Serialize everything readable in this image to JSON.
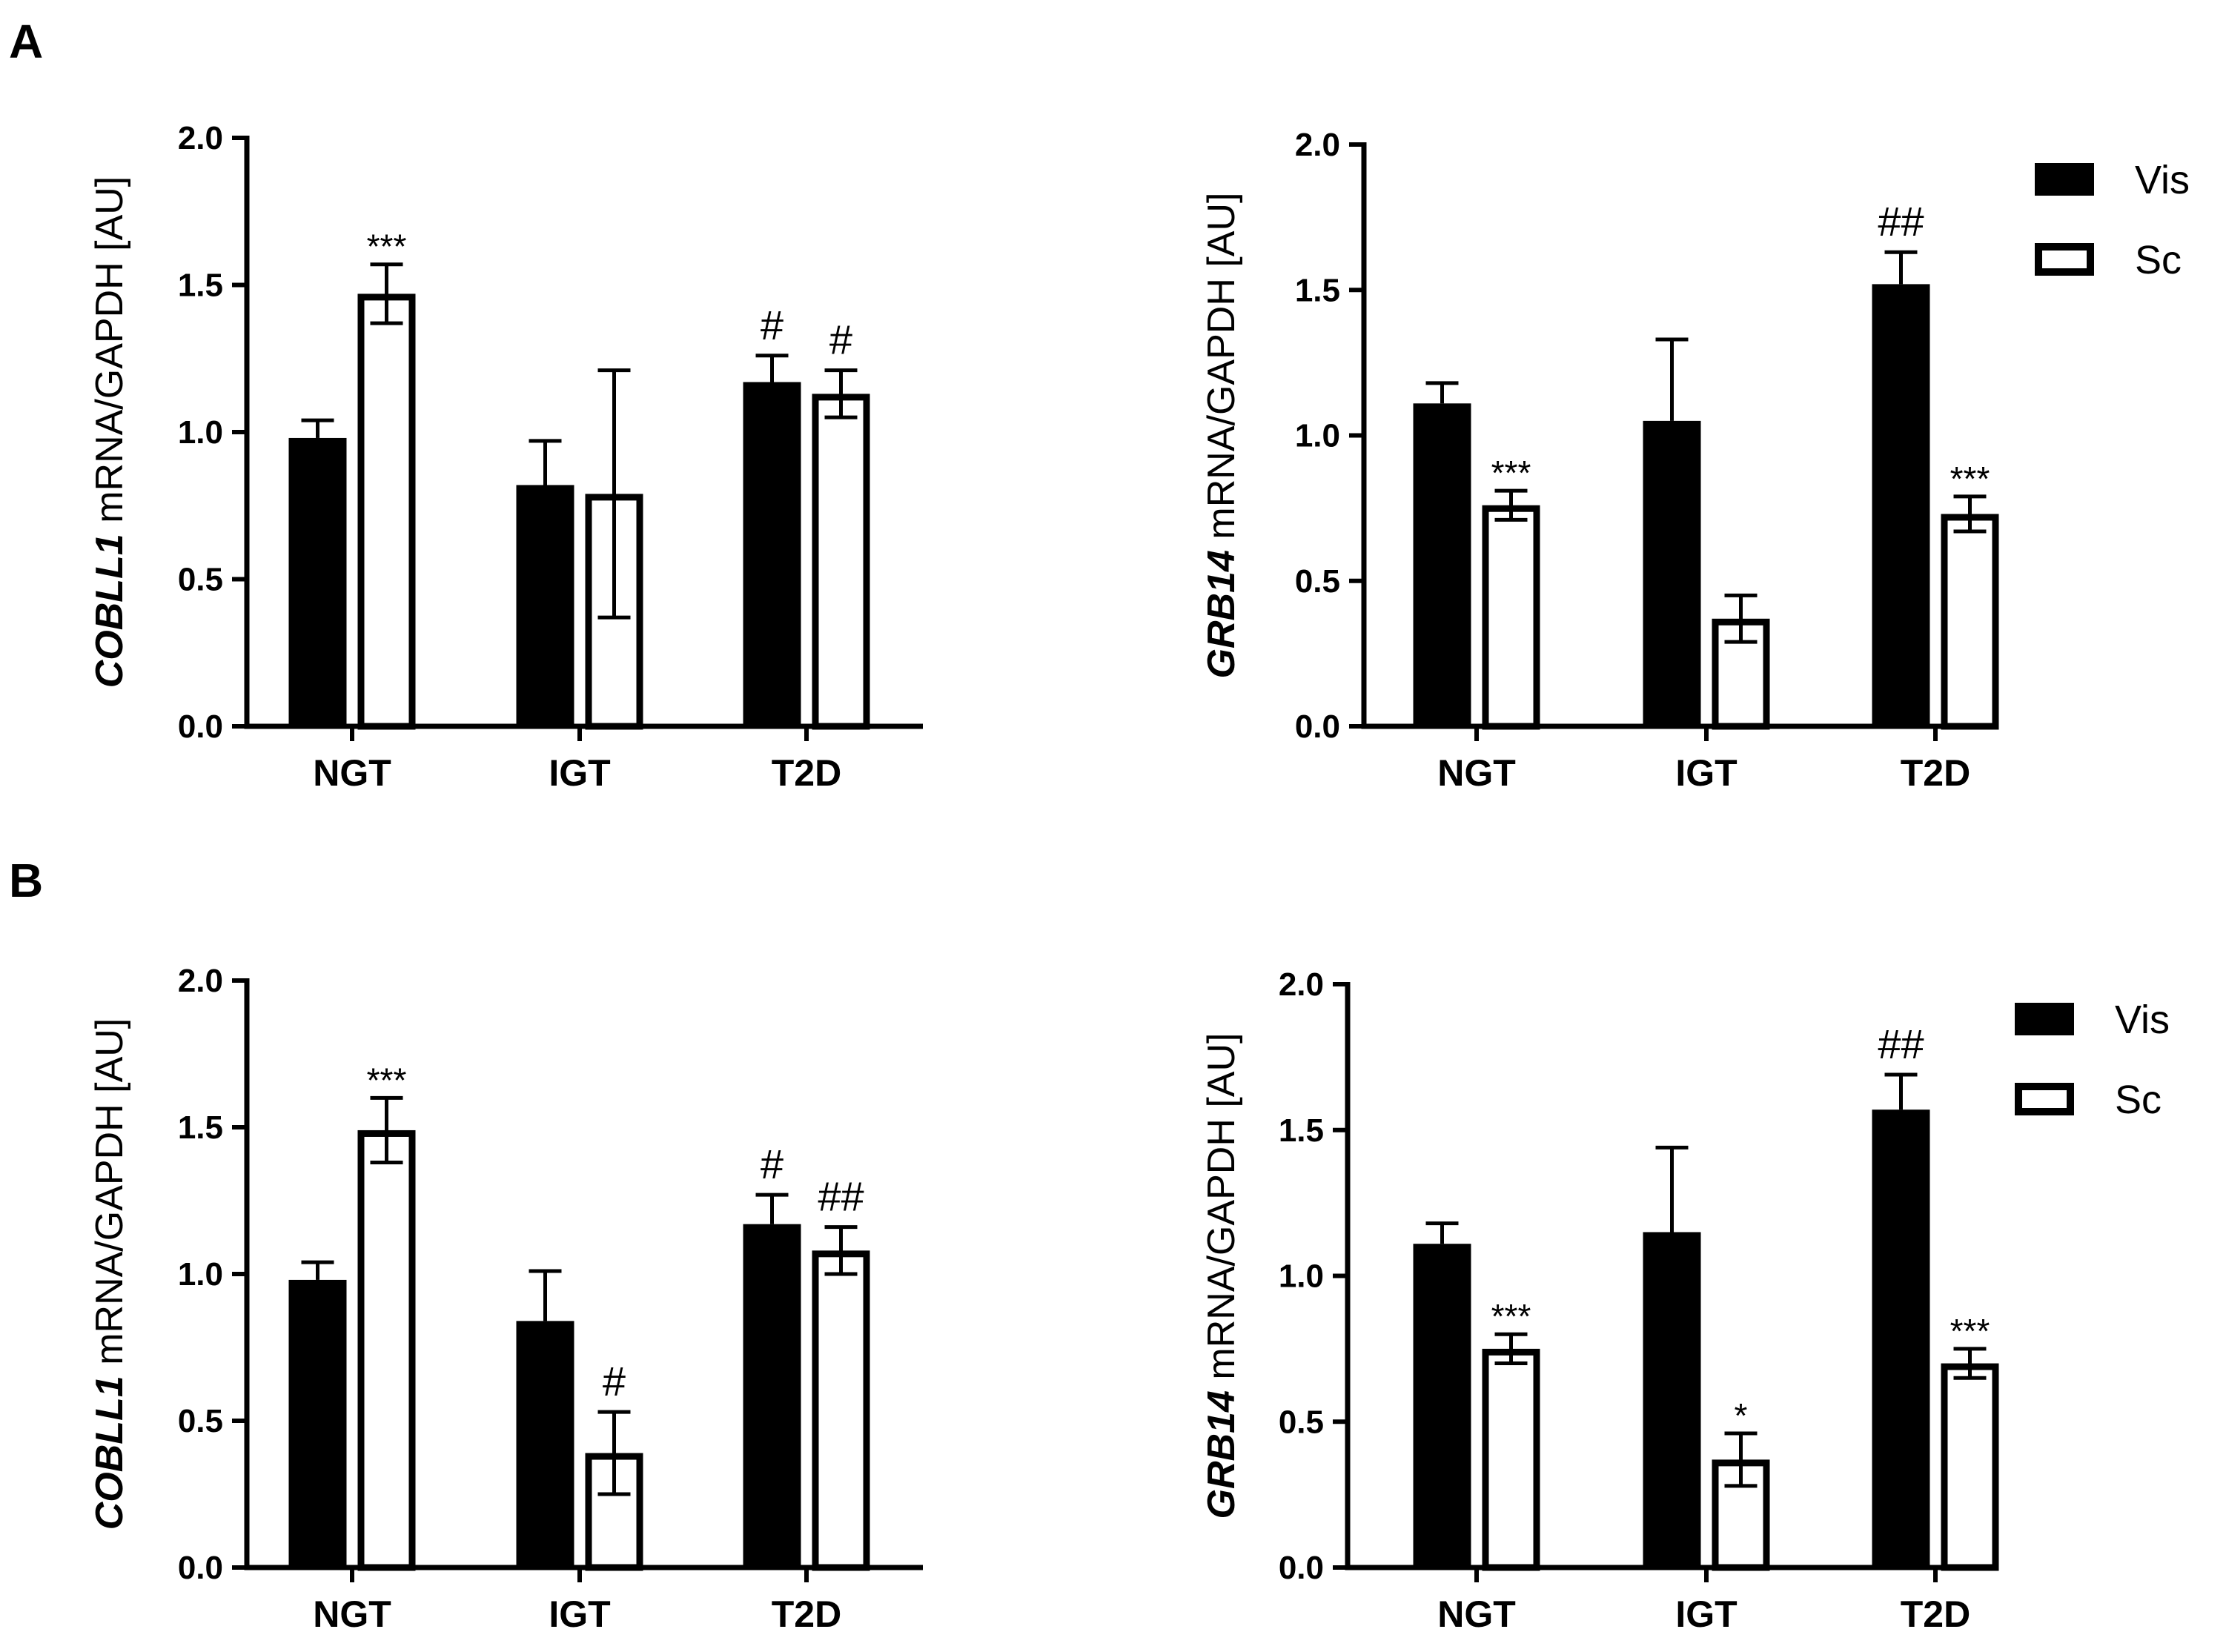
{
  "figure": {
    "panel_labels": [
      "A",
      "B"
    ],
    "legend": [
      {
        "label": "Vis",
        "fill": "#000000"
      },
      {
        "label": "Sc",
        "fill": "#ffffff"
      }
    ]
  },
  "chart_data": [
    {
      "type": "bar",
      "panel": "A",
      "position": "top-left",
      "ylabel_gene": "COBLL1",
      "ylabel_rest": " mRNA/GAPDH  [AU]",
      "ylim": [
        0,
        2.0
      ],
      "yticks": [
        "0.0",
        "0.5",
        "1.0",
        "1.5",
        "2.0"
      ],
      "categories": [
        "NGT",
        "IGT",
        "T2D"
      ],
      "series": [
        {
          "name": "Vis",
          "values": [
            0.98,
            0.82,
            1.17
          ],
          "errors": [
            0.06,
            0.15,
            0.09
          ],
          "sig": [
            "",
            "",
            "#"
          ]
        },
        {
          "name": "Sc",
          "values": [
            1.47,
            0.79,
            1.13
          ],
          "errors": [
            0.1,
            0.42,
            0.08
          ],
          "sig": [
            "***",
            "",
            "#"
          ]
        }
      ],
      "show_legend": false
    },
    {
      "type": "bar",
      "panel": "A",
      "position": "top-right",
      "ylabel_gene": "GRB14",
      "ylabel_rest": " mRNA/GAPDH [AU]",
      "ylim": [
        0,
        2.0
      ],
      "yticks": [
        "0.0",
        "0.5",
        "1.0",
        "1.5",
        "2.0"
      ],
      "categories": [
        "NGT",
        "IGT",
        "T2D"
      ],
      "series": [
        {
          "name": "Vis",
          "values": [
            1.11,
            1.05,
            1.52
          ],
          "errors": [
            0.07,
            0.28,
            0.11
          ],
          "sig": [
            "",
            "",
            "##"
          ]
        },
        {
          "name": "Sc",
          "values": [
            0.76,
            0.37,
            0.73
          ],
          "errors": [
            0.05,
            0.08,
            0.06
          ],
          "sig": [
            "***",
            "",
            "***"
          ]
        }
      ],
      "show_legend": true
    },
    {
      "type": "bar",
      "panel": "B",
      "position": "bottom-left",
      "ylabel_gene": "COBLL1",
      "ylabel_rest": " mRNA/GAPDH  [AU]",
      "ylim": [
        0,
        2.0
      ],
      "yticks": [
        "0.0",
        "0.5",
        "1.0",
        "1.5",
        "2.0"
      ],
      "categories": [
        "NGT",
        "IGT",
        "T2D"
      ],
      "series": [
        {
          "name": "Vis",
          "values": [
            0.98,
            0.84,
            1.17
          ],
          "errors": [
            0.06,
            0.17,
            0.1
          ],
          "sig": [
            "",
            "",
            "#"
          ]
        },
        {
          "name": "Sc",
          "values": [
            1.49,
            0.39,
            1.08
          ],
          "errors": [
            0.11,
            0.14,
            0.08
          ],
          "sig": [
            "***",
            "#",
            "##"
          ]
        }
      ],
      "show_legend": false
    },
    {
      "type": "bar",
      "panel": "B",
      "position": "bottom-right",
      "ylabel_gene": "GRB14",
      "ylabel_rest": " mRNA/GAPDH [AU]",
      "ylim": [
        0,
        2.0
      ],
      "yticks": [
        "0.0",
        "0.5",
        "1.0",
        "1.5",
        "2.0"
      ],
      "categories": [
        "NGT",
        "IGT",
        "T2D"
      ],
      "series": [
        {
          "name": "Vis",
          "values": [
            1.11,
            1.15,
            1.57
          ],
          "errors": [
            0.07,
            0.29,
            0.12
          ],
          "sig": [
            "",
            "",
            "##"
          ]
        },
        {
          "name": "Sc",
          "values": [
            0.75,
            0.37,
            0.7
          ],
          "errors": [
            0.05,
            0.09,
            0.05
          ],
          "sig": [
            "***",
            "*",
            "***"
          ]
        }
      ],
      "show_legend": true
    }
  ]
}
